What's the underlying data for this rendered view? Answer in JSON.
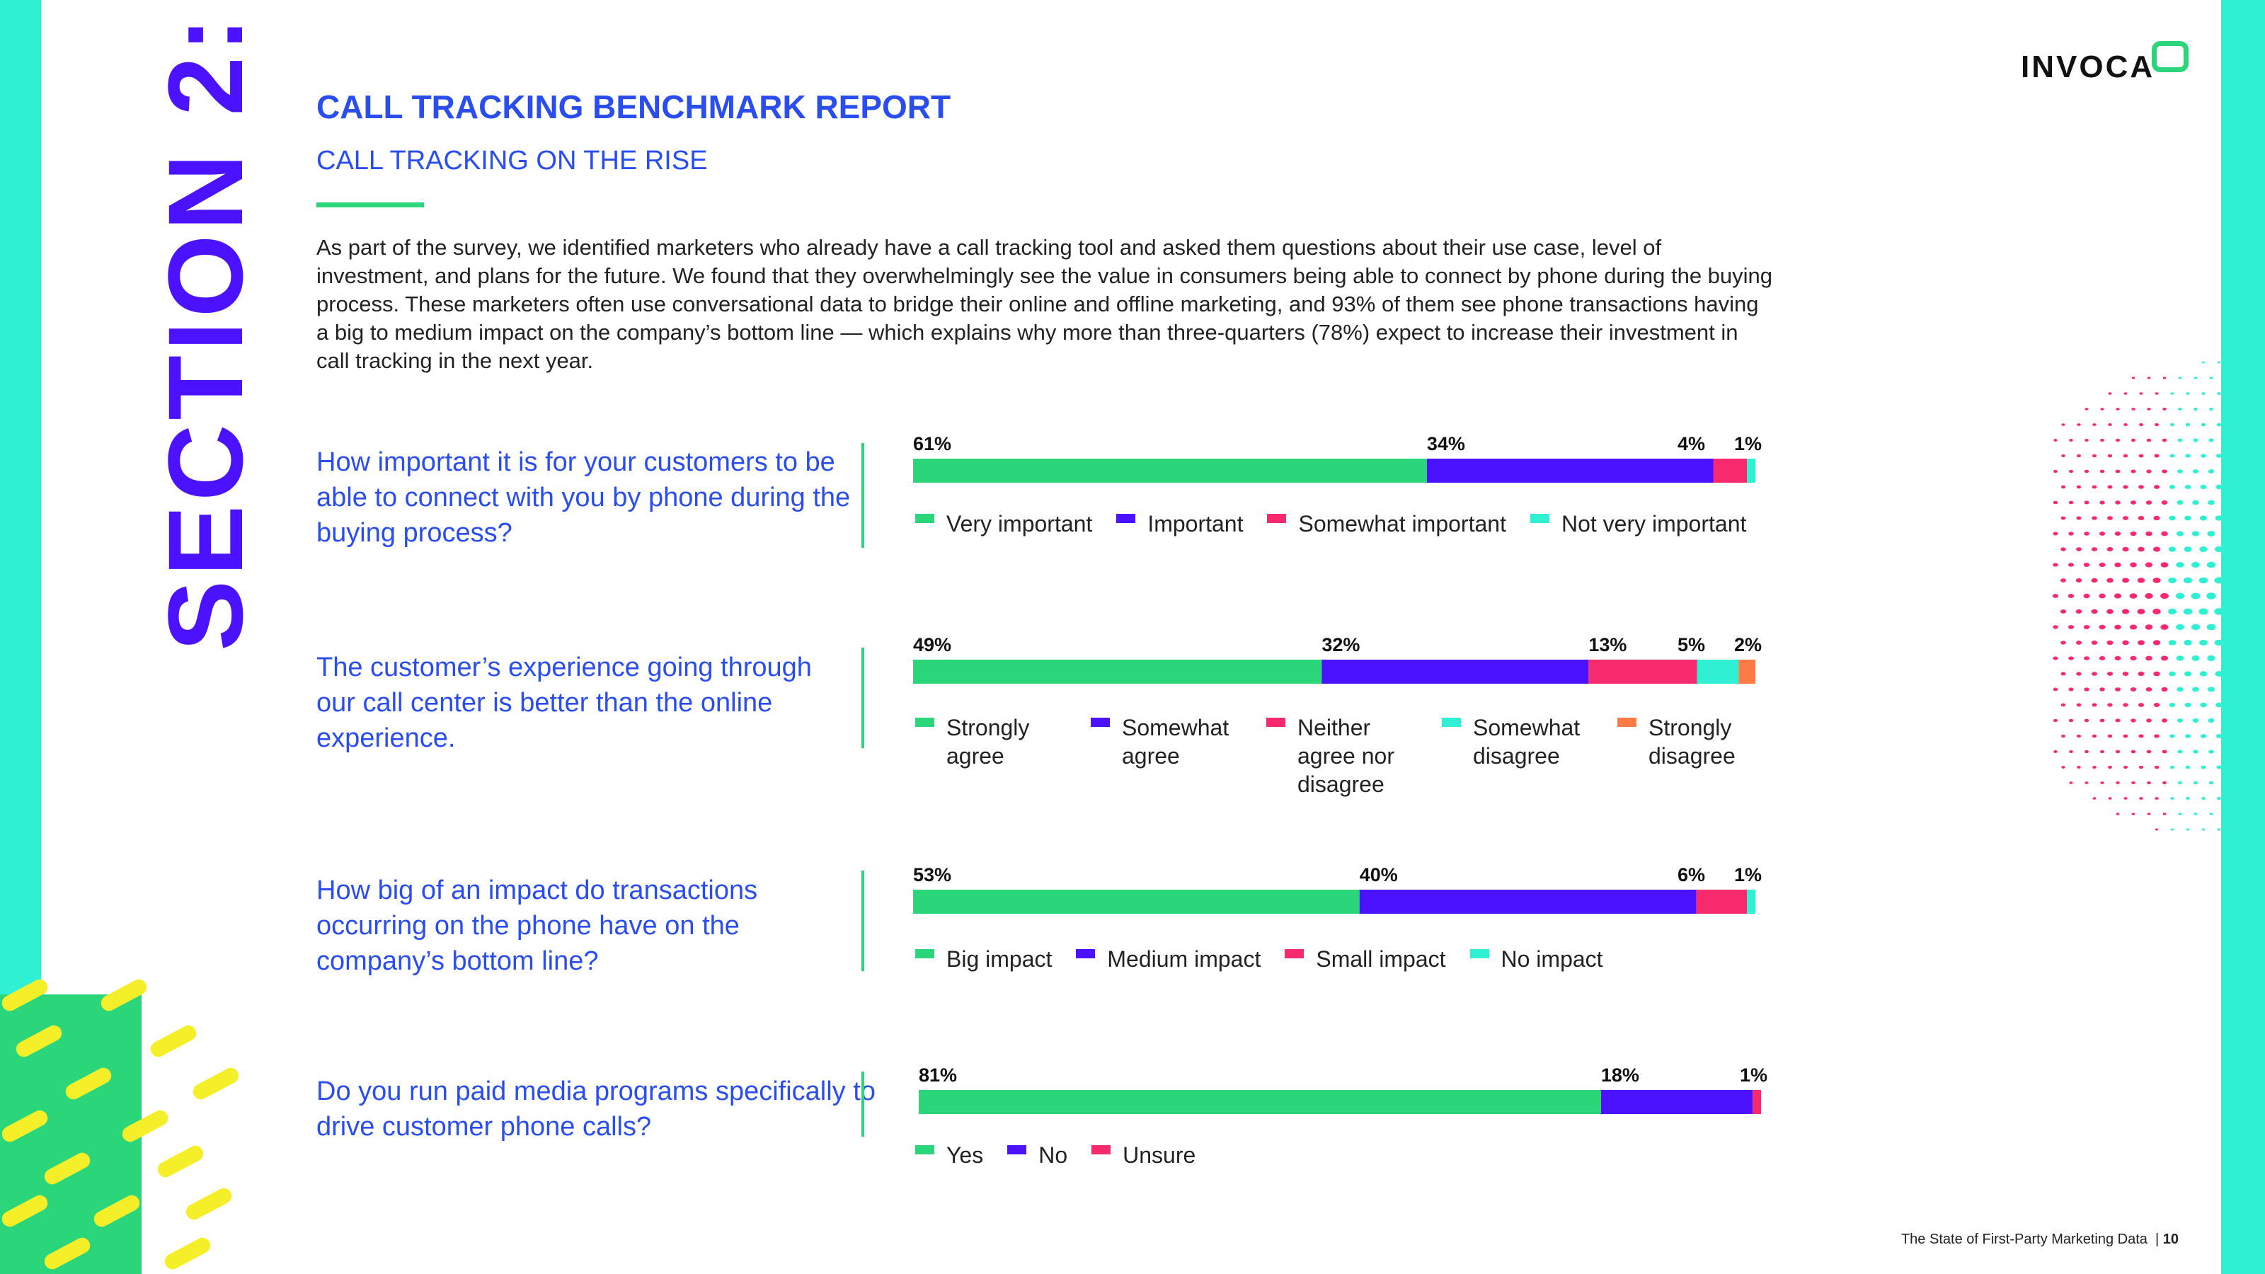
{
  "branding": {
    "logo": "INVOCA",
    "section": "SECTION 2:"
  },
  "header": {
    "title": "CALL TRACKING BENCHMARK REPORT",
    "subtitle": "CALL TRACKING ON THE RISE"
  },
  "intro": "As part of the survey, we identified marketers who already have a call tracking tool and asked them questions about their use case, level of investment, and plans for the future. We found that they overwhelmingly see the value in consumers being able to connect by phone during the buying process. These marketers often use conversational data to bridge their online and offline marketing, and 93% of them see phone transactions having a big to medium impact on the company’s bottom line — which explains why more than three-quarters (78%) expect to increase their investment in call tracking in the next year.",
  "colors": {
    "green": "#2bd67b",
    "purple": "#4b12ff",
    "pink": "#f72a6e",
    "cyan": "#2ff0d2",
    "orange": "#ff7a45",
    "title_blue": "#2a4df0",
    "yellow": "#f5ef2a"
  },
  "chart_data": [
    {
      "type": "bar",
      "orientation": "horizontal-stacked-100",
      "title": "How important it is for your customers to be able to connect with you by phone during the buying process?",
      "categories": [
        "Very important",
        "Important",
        "Somewhat important",
        "Not very important"
      ],
      "values": [
        61,
        34,
        4,
        1
      ],
      "labels": [
        "61%",
        "34%",
        "4%",
        "1%"
      ],
      "colors": [
        "#2bd67b",
        "#4b12ff",
        "#f72a6e",
        "#2ff0d2"
      ]
    },
    {
      "type": "bar",
      "orientation": "horizontal-stacked-100",
      "title": "The customer’s experience going through our call center is better than the online experience.",
      "categories": [
        "Strongly agree",
        "Somewhat agree",
        "Neither agree nor disagree",
        "Somewhat disagree",
        "Strongly disagree"
      ],
      "values": [
        49,
        32,
        13,
        5,
        2
      ],
      "labels": [
        "49%",
        "32%",
        "13%",
        "5%",
        "2%"
      ],
      "colors": [
        "#2bd67b",
        "#4b12ff",
        "#f72a6e",
        "#2ff0d2",
        "#ff7a45"
      ]
    },
    {
      "type": "bar",
      "orientation": "horizontal-stacked-100",
      "title": "How big of an impact do transactions occurring on the phone have on the company’s bottom line?",
      "categories": [
        "Big impact",
        "Medium impact",
        "Small impact",
        "No impact"
      ],
      "values": [
        53,
        40,
        6,
        1
      ],
      "labels": [
        "53%",
        "40%",
        "6%",
        "1%"
      ],
      "colors": [
        "#2bd67b",
        "#4b12ff",
        "#f72a6e",
        "#2ff0d2"
      ]
    },
    {
      "type": "bar",
      "orientation": "horizontal-stacked-100",
      "title": "Do you run paid media programs specifically to drive customer phone calls?",
      "categories": [
        "Yes",
        "No",
        "Unsure"
      ],
      "values": [
        81,
        18,
        1
      ],
      "labels": [
        "81%",
        "18%",
        "1%"
      ],
      "colors": [
        "#2bd67b",
        "#4b12ff",
        "#f72a6e"
      ]
    }
  ],
  "footer": {
    "text": "The State of First-Party Marketing Data",
    "page": "10"
  }
}
